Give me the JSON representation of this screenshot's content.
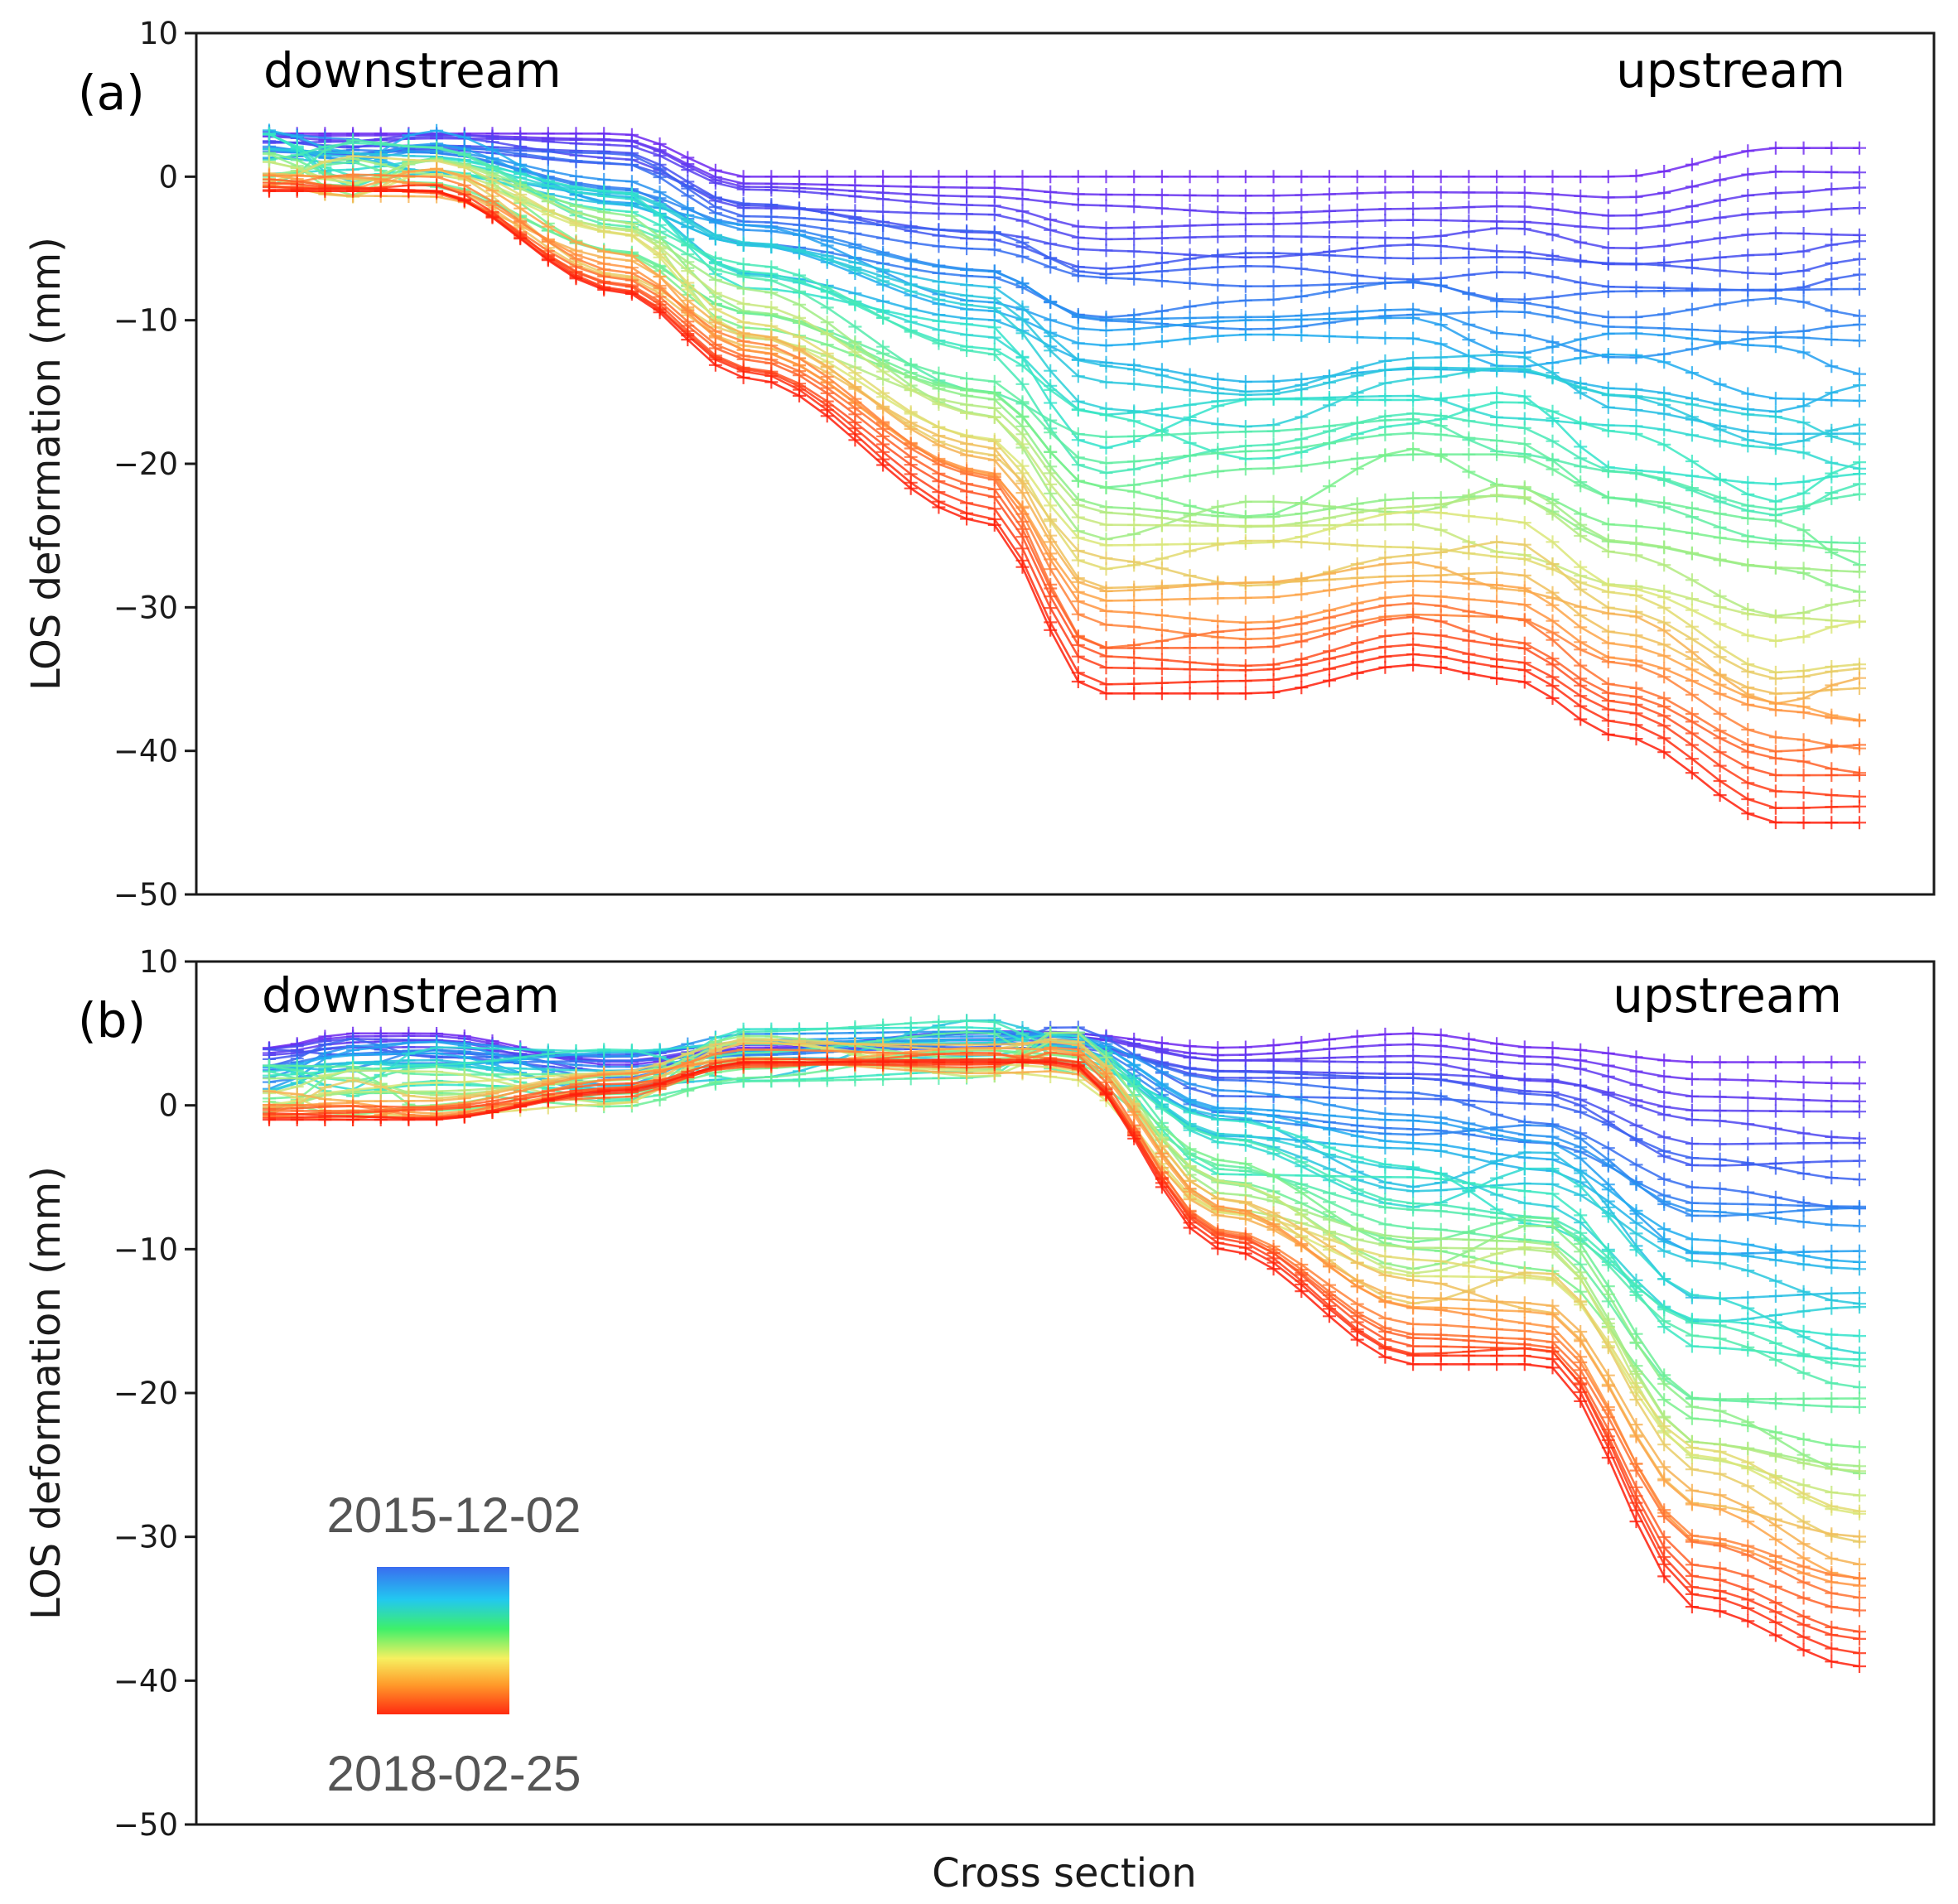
{
  "chart_data": [
    {
      "type": "line",
      "panel": "(a)",
      "ylabel": "LOS deformation (mm)",
      "xlabel": "",
      "ylim": [
        -50,
        10
      ],
      "yticks": [
        10,
        0,
        -10,
        -20,
        -30,
        -40,
        -50
      ],
      "ytick_labels": [
        "10",
        "0",
        "−10",
        "−20",
        "−30",
        "−40",
        "−50"
      ],
      "annotations": {
        "left": "downstream",
        "right": "upstream"
      },
      "marker": "+",
      "n_points": 58,
      "series_summary": "~70 acquisitions from 2015-12-02 (blue/purple) to 2018-02-25 (red); deformation grows over time, largest at the upstream end",
      "anchor_x": [
        0,
        0.05,
        0.1,
        0.22,
        0.3,
        0.45,
        0.52,
        0.62,
        0.72,
        0.78,
        0.85,
        0.95,
        1.0
      ],
      "first_profile": [
        3,
        3,
        3,
        3,
        0,
        0,
        0,
        0,
        0,
        0,
        0,
        2,
        2
      ],
      "last_profile": [
        -1,
        -1,
        -1,
        -8,
        -14,
        -24,
        -36,
        -36,
        -34,
        -35,
        -39,
        -45,
        -45
      ],
      "extreme_profiles": [
        {
          "name": "2015-12-02",
          "values": [
            3,
            3,
            3,
            3,
            0,
            0,
            0,
            0,
            0,
            0,
            0,
            2,
            2
          ]
        },
        {
          "name": "2018-02-25",
          "values": [
            -1,
            -1,
            -1,
            -8,
            -14,
            -24,
            -36,
            -36,
            -34,
            -35,
            -39,
            -45,
            -45
          ]
        }
      ]
    },
    {
      "type": "line",
      "panel": "(b)",
      "ylabel": "LOS deformation (mm)",
      "xlabel": "Cross section",
      "ylim": [
        -50,
        10
      ],
      "yticks": [
        10,
        0,
        -10,
        -20,
        -30,
        -40,
        -50
      ],
      "ytick_labels": [
        "10",
        "0",
        "−10",
        "−20",
        "−30",
        "−40",
        "−50"
      ],
      "annotations": {
        "left": "downstream",
        "right": "upstream"
      },
      "marker": "+",
      "n_points": 58,
      "series_summary": "~70 acquisitions from 2015-12-02 (blue/purple) to 2018-02-25 (red); sharp drop after mid-section",
      "anchor_x": [
        0,
        0.05,
        0.1,
        0.22,
        0.3,
        0.45,
        0.5,
        0.6,
        0.72,
        0.8,
        0.9,
        1.0
      ],
      "first_profile": [
        4,
        5,
        5,
        3,
        4,
        5,
        5,
        4,
        5,
        4,
        3,
        3
      ],
      "last_profile": [
        -1,
        -1,
        -1,
        1,
        3,
        3,
        3,
        -10,
        -18,
        -18,
        -35,
        -39
      ],
      "extreme_profiles": [
        {
          "name": "2015-12-02",
          "values": [
            4,
            5,
            5,
            3,
            4,
            5,
            5,
            4,
            5,
            4,
            3,
            3
          ]
        },
        {
          "name": "2018-02-25",
          "values": [
            -1,
            -1,
            -1,
            1,
            3,
            3,
            3,
            -10,
            -18,
            -18,
            -35,
            -39
          ]
        }
      ]
    }
  ],
  "colorbar": {
    "start_label": "2015-12-02",
    "end_label": "2018-02-25",
    "colors": [
      "#3a6df0",
      "#22c8f0",
      "#3ef06a",
      "#f6f060",
      "#ff9a2a",
      "#ff2a10"
    ]
  }
}
